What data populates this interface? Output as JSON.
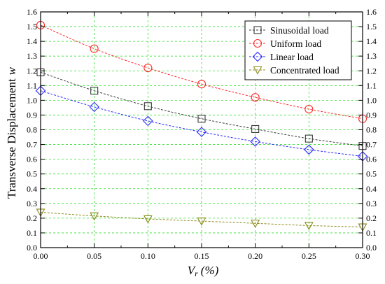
{
  "chart_data": {
    "type": "line",
    "title": "",
    "xlabel": "(%)",
    "xlabel_symbol": "V",
    "xlabel_subscript": "r",
    "ylabel": "Transverse Displacement",
    "ylabel_symbol": "w",
    "xlim": [
      0,
      0.3
    ],
    "ylim": [
      0,
      1.6
    ],
    "xticks": [
      "0.00",
      "0.05",
      "0.10",
      "0.15",
      "0.20",
      "0.25",
      "0.30"
    ],
    "yticks": [
      "0.0",
      "0.1",
      "0.2",
      "0.3",
      "0.4",
      "0.5",
      "0.6",
      "0.7",
      "0.8",
      "0.9",
      "1.0",
      "1.1",
      "1.2",
      "1.3",
      "1.4",
      "1.5",
      "1.6"
    ],
    "grid": true,
    "legend_position": "top-right",
    "x": [
      0.0,
      0.05,
      0.1,
      0.15,
      0.2,
      0.25,
      0.3
    ],
    "series": [
      {
        "name": "Sinusoidal load",
        "marker": "square",
        "color": "#3a3a3a",
        "values": [
          1.19,
          1.065,
          0.96,
          0.875,
          0.805,
          0.74,
          0.69
        ]
      },
      {
        "name": "Uniform load",
        "marker": "circle",
        "color": "#ff2a2a",
        "values": [
          1.51,
          1.35,
          1.22,
          1.11,
          1.02,
          0.94,
          0.875
        ]
      },
      {
        "name": "Linear load",
        "marker": "diamond",
        "color": "#2a2aff",
        "values": [
          1.065,
          0.955,
          0.86,
          0.785,
          0.72,
          0.665,
          0.62
        ]
      },
      {
        "name": "Concentrated load",
        "marker": "triangle-down",
        "color": "#8a8a1a",
        "values": [
          0.24,
          0.215,
          0.195,
          0.18,
          0.165,
          0.15,
          0.14
        ]
      }
    ]
  }
}
